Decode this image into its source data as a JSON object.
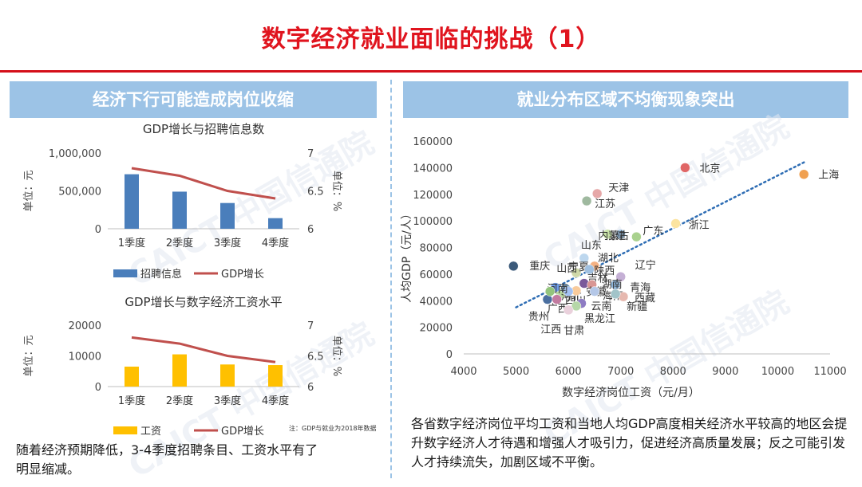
{
  "slide": {
    "title": "数字经济就业面临的挑战（1）",
    "left_banner": "经济下行可能造成岗位收缩",
    "right_banner": "就业分布区域不均衡现象突出",
    "watermark": "CAICT 中国信通院",
    "left_caption": "随着经济预期降低，3-4季度招聘条目、工资水平有了明显缩减。",
    "right_caption": "各省数字经济岗位平均工资和当地人均GDP高度相关经济水平较高的地区会提升数字经济人才待遇和增强人才吸引力，促进经济高质量发展；反之可能引发人才持续流失，加剧区域不平衡。",
    "footnote": "注：GDP与就业为2018年数据",
    "colors": {
      "title": "#e0141e",
      "banner": "#9cc3e6",
      "bar_blue": "#4a7ebb",
      "bar_yellow": "#ffc000",
      "line_red": "#c0504d"
    }
  },
  "chart_data": [
    {
      "type": "bar",
      "title": "GDP增长与招聘信息数",
      "categories": [
        "1季度",
        "2季度",
        "3季度",
        "4季度"
      ],
      "series": [
        {
          "name": "招聘信息",
          "kind": "bar",
          "axis": "left",
          "values": [
            720000,
            490000,
            340000,
            140000
          ]
        },
        {
          "name": "GDP增长",
          "kind": "line",
          "axis": "right",
          "values": [
            6.8,
            6.7,
            6.5,
            6.4
          ]
        }
      ],
      "ylabel": "单位：元",
      "y2label": "单位：%",
      "ylim": [
        0,
        1000000
      ],
      "y2lim": [
        6,
        7
      ],
      "yticks": [
        "0",
        "500,000",
        "1,000,000"
      ],
      "y2ticks": [
        "6",
        "6.5",
        "7"
      ],
      "legend": "bottom"
    },
    {
      "type": "bar",
      "title": "GDP增长与数字经济工资水平",
      "categories": [
        "1季度",
        "2季度",
        "3季度",
        "4季度"
      ],
      "series": [
        {
          "name": "工资",
          "kind": "bar",
          "axis": "left",
          "values": [
            6500,
            10500,
            7200,
            7000
          ]
        },
        {
          "name": "GDP增长",
          "kind": "line",
          "axis": "right",
          "values": [
            6.8,
            6.7,
            6.5,
            6.4
          ]
        }
      ],
      "ylabel": "单位：元",
      "y2label": "单位：%",
      "ylim": [
        0,
        20000
      ],
      "y2lim": [
        6,
        7
      ],
      "yticks": [
        "0",
        "10000",
        "20000"
      ],
      "y2ticks": [
        "6",
        "6.5",
        "7"
      ],
      "legend": "bottom"
    },
    {
      "type": "scatter",
      "xlabel": "数字经济岗位工资（元/月）",
      "ylabel": "人均GDP（元/人）",
      "xlim": [
        4000,
        11000
      ],
      "ylim": [
        0,
        160000
      ],
      "xticks": [
        4000,
        5000,
        6000,
        7000,
        8000,
        9000,
        10000,
        11000
      ],
      "yticks": [
        0,
        20000,
        40000,
        60000,
        80000,
        100000,
        120000,
        140000,
        160000
      ],
      "trendline": {
        "style": "dotted",
        "x": [
          5000,
          10500
        ],
        "y": [
          35000,
          144000
        ]
      },
      "points": [
        {
          "label": "北京",
          "x": 8230,
          "y": 140000,
          "color": "#e06666"
        },
        {
          "label": "上海",
          "x": 10500,
          "y": 135000,
          "color": "#f0a050"
        },
        {
          "label": "天津",
          "x": 6550,
          "y": 120500,
          "color": "#e6a8a8"
        },
        {
          "label": "江苏",
          "x": 6350,
          "y": 115000,
          "color": "#9fb99f"
        },
        {
          "label": "浙江",
          "x": 8050,
          "y": 98000,
          "color": "#fce4a0"
        },
        {
          "label": "广东",
          "x": 7300,
          "y": 88000,
          "color": "#a9d18e"
        },
        {
          "label": "福建",
          "x": 7000,
          "y": 90000,
          "color": "#9dc3e6"
        },
        {
          "label": "内蒙古",
          "x": 6750,
          "y": 90000,
          "color": "#c9e2a8"
        },
        {
          "label": "山东",
          "x": 6300,
          "y": 72000,
          "color": "#bdd7ee"
        },
        {
          "label": "湖北",
          "x": 6500,
          "y": 66000,
          "color": "#f4b183"
        },
        {
          "label": "辽宁",
          "x": 7000,
          "y": 58000,
          "color": "#c5b0d5"
        },
        {
          "label": "重庆",
          "x": 4950,
          "y": 66000,
          "color": "#3b5a7a"
        },
        {
          "label": "宁夏",
          "x": 6150,
          "y": 61000,
          "color": "#cfd8a8"
        },
        {
          "label": "陕西",
          "x": 6400,
          "y": 63500,
          "color": "#a0c0e0"
        },
        {
          "label": "青海",
          "x": 6900,
          "y": 52000,
          "color": "#8eb4d8"
        },
        {
          "label": "山西",
          "x": 5850,
          "y": 45000,
          "color": "#b7d7a0"
        },
        {
          "label": "吉林",
          "x": 6300,
          "y": 53000,
          "color": "#7a5a9a"
        },
        {
          "label": "湖南",
          "x": 6450,
          "y": 52000,
          "color": "#d99694"
        },
        {
          "label": "河北",
          "x": 5950,
          "y": 49000,
          "color": "#6a8fb0"
        },
        {
          "label": "安徽",
          "x": 6150,
          "y": 47500,
          "color": "#f9cb9c"
        },
        {
          "label": "海南",
          "x": 6500,
          "y": 47000,
          "color": "#b4c7e7"
        },
        {
          "label": "西藏",
          "x": 7050,
          "y": 43000,
          "color": "#e6b8af"
        },
        {
          "label": "四川",
          "x": 6000,
          "y": 47000,
          "color": "#a4c2f4"
        },
        {
          "label": "云南",
          "x": 6250,
          "y": 38000,
          "color": "#8e7cc3"
        },
        {
          "label": "广西",
          "x": 5780,
          "y": 41000,
          "color": "#c27ba0"
        },
        {
          "label": "河南",
          "x": 5750,
          "y": 50000,
          "color": "#6d9eeb"
        },
        {
          "label": "黑龙江",
          "x": 6150,
          "y": 36000,
          "color": "#b6d7a8"
        },
        {
          "label": "新疆",
          "x": 6900,
          "y": 45000,
          "color": "#a2c4c9"
        },
        {
          "label": "贵州",
          "x": 5600,
          "y": 41000,
          "color": "#4a6fa0"
        },
        {
          "label": "甘肃",
          "x": 6000,
          "y": 33000,
          "color": "#ead1dc"
        },
        {
          "label": "江西",
          "x": 5650,
          "y": 47000,
          "color": "#93c47d"
        }
      ]
    }
  ]
}
